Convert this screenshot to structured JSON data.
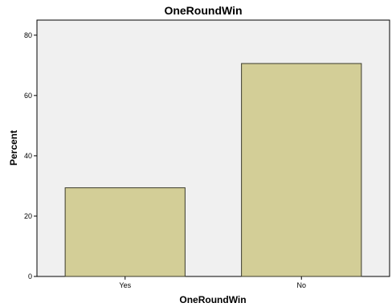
{
  "chart_data": {
    "type": "bar",
    "title": "OneRoundWin",
    "xlabel": "OneRoundWin",
    "ylabel": "Percent",
    "categories": [
      "Yes",
      "No"
    ],
    "values": [
      29.4,
      70.6
    ],
    "ylim": [
      0,
      85
    ],
    "yticks": [
      0,
      20,
      40,
      60,
      80
    ],
    "grid": false,
    "legend": "none",
    "colors": {
      "bar_fill": "#d3ce97",
      "bar_stroke": "#3a3a2a",
      "plot_background": "#f0f0f0",
      "axis": "#000000"
    }
  }
}
